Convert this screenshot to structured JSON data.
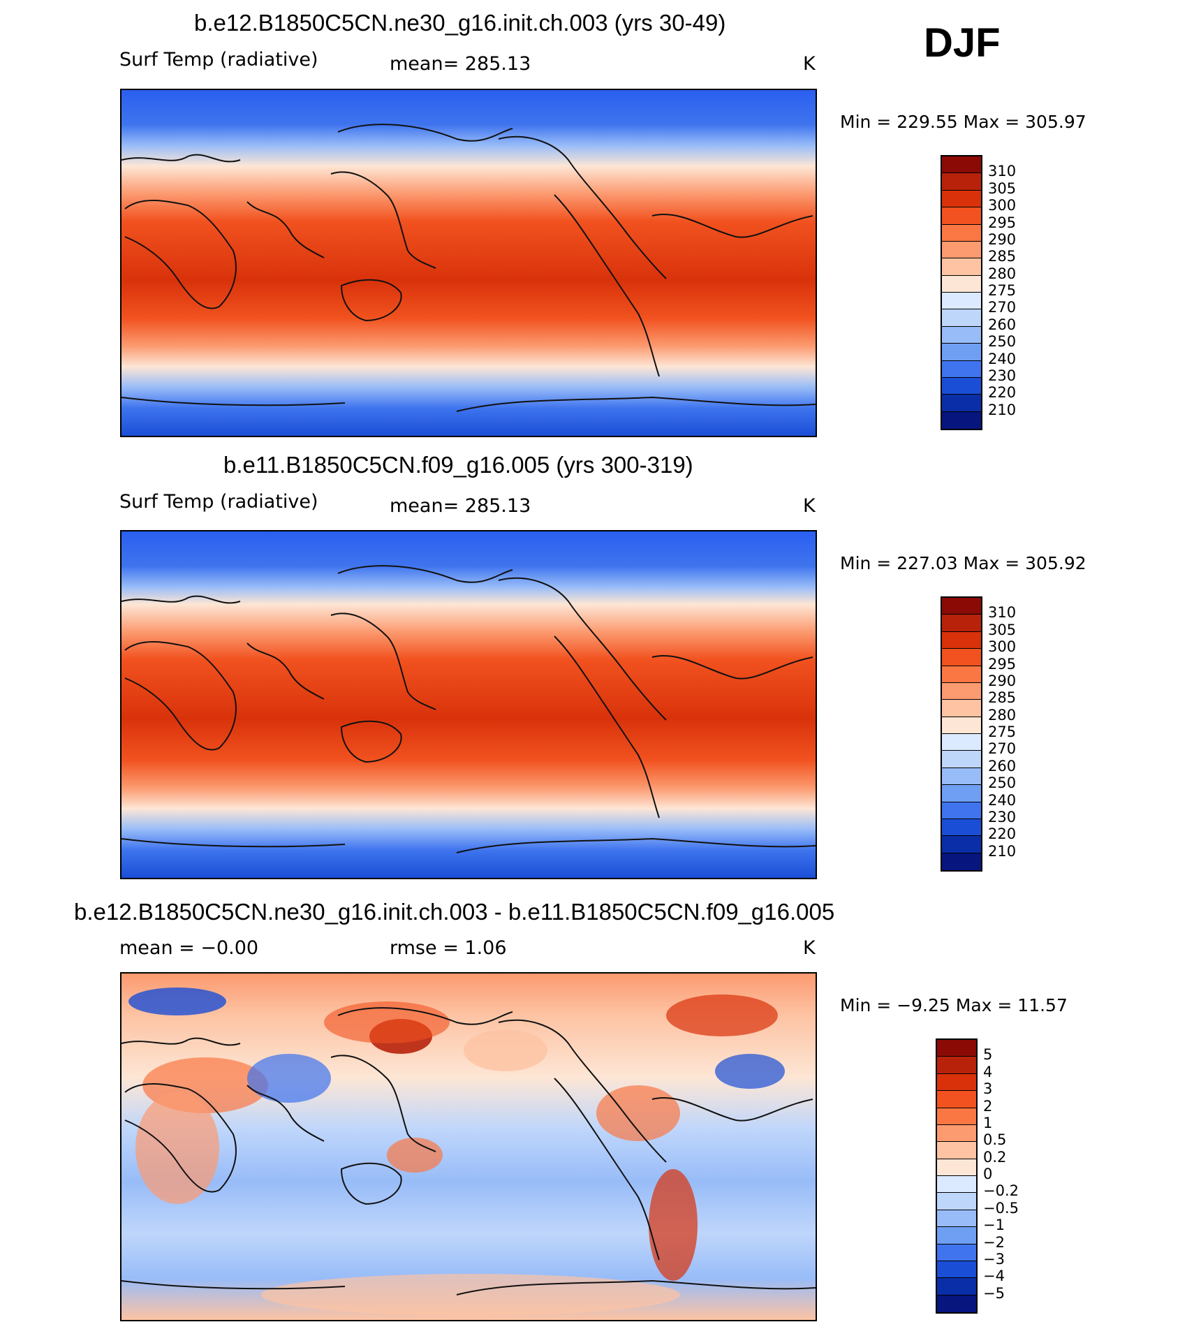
{
  "season": "DJF",
  "panels": [
    {
      "title": "b.e12.B1850C5CN.ne30_g16.init.ch.003 (yrs 30-49)",
      "left_label": "Surf Temp (radiative)",
      "center_label": "mean=  285.13",
      "units": "K",
      "minmax": "Min  =  229.55  Max  =  305.97",
      "colorbar_levels": [
        "310",
        "305",
        "300",
        "295",
        "290",
        "285",
        "280",
        "275",
        "270",
        "260",
        "250",
        "240",
        "230",
        "220",
        "210"
      ],
      "colorbar_colors": [
        "#8b0a06",
        "#b8220b",
        "#d9320b",
        "#f1521f",
        "#fa7744",
        "#fc9a70",
        "#fdc3a3",
        "#fde6d5",
        "#dbeaff",
        "#bfd6fb",
        "#98bcf8",
        "#6f9ff3",
        "#3f74ee",
        "#1a4ed6",
        "#0a2ea8",
        "#07157f"
      ]
    },
    {
      "title": "b.e11.B1850C5CN.f09_g16.005 (yrs 300-319)",
      "left_label": "Surf Temp (radiative)",
      "center_label": "mean=  285.13",
      "units": "K",
      "minmax": "Min  =  227.03  Max  =  305.92",
      "colorbar_levels": [
        "310",
        "305",
        "300",
        "295",
        "290",
        "285",
        "280",
        "275",
        "270",
        "260",
        "250",
        "240",
        "230",
        "220",
        "210"
      ],
      "colorbar_colors": [
        "#8b0a06",
        "#b8220b",
        "#d9320b",
        "#f1521f",
        "#fa7744",
        "#fc9a70",
        "#fdc3a3",
        "#fde6d5",
        "#dbeaff",
        "#bfd6fb",
        "#98bcf8",
        "#6f9ff3",
        "#3f74ee",
        "#1a4ed6",
        "#0a2ea8",
        "#07157f"
      ]
    },
    {
      "title": "b.e12.B1850C5CN.ne30_g16.init.ch.003 - b.e11.B1850C5CN.f09_g16.005",
      "left_label": "mean  =    −0.00",
      "center_label": "rmse  =      1.06",
      "units": "K",
      "minmax": "Min  =    −9.25  Max  =    11.57",
      "colorbar_levels": [
        "5",
        "4",
        "3",
        "2",
        "1",
        "0.5",
        "0.2",
        "0",
        "−0.2",
        "−0.5",
        "−1",
        "−2",
        "−3",
        "−4",
        "−5"
      ],
      "colorbar_colors": [
        "#8b0a06",
        "#b8220b",
        "#d9320b",
        "#f1521f",
        "#fa7744",
        "#fc9a70",
        "#fdc3a3",
        "#fde6d5",
        "#dbeaff",
        "#bfd6fb",
        "#98bcf8",
        "#6f9ff3",
        "#3f74ee",
        "#1a4ed6",
        "#0a2ea8",
        "#07157f"
      ]
    }
  ]
}
